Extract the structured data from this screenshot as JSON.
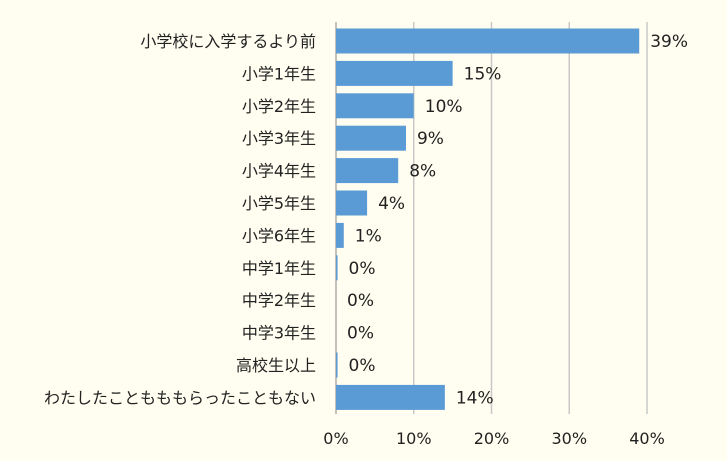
{
  "chart_data": {
    "type": "bar",
    "orientation": "horizontal",
    "title": "",
    "xlabel": "",
    "ylabel": "",
    "categories": [
      "小学校に入学するより前",
      "小学1年生",
      "小学2年生",
      "小学3年生",
      "小学4年生",
      "小学5年生",
      "小学6年生",
      "中学1年生",
      "中学2年生",
      "中学3年生",
      "高校生以上",
      "わたしたこともももらったこともない"
    ],
    "values": [
      39,
      15,
      10,
      9,
      8,
      4,
      1,
      0.2,
      0,
      0,
      0.2,
      14
    ],
    "value_labels": [
      "39%",
      "15%",
      "10%",
      "9%",
      "8%",
      "4%",
      "1%",
      "0%",
      "0%",
      "0%",
      "0%",
      "14%"
    ],
    "xlim": [
      0,
      40
    ],
    "xticks": [
      0,
      10,
      20,
      30,
      40
    ],
    "xtick_labels": [
      "0%",
      "10%",
      "20%",
      "30%",
      "40%"
    ],
    "grid": true,
    "legend": "none",
    "bar_color": "#5b9bd5"
  }
}
